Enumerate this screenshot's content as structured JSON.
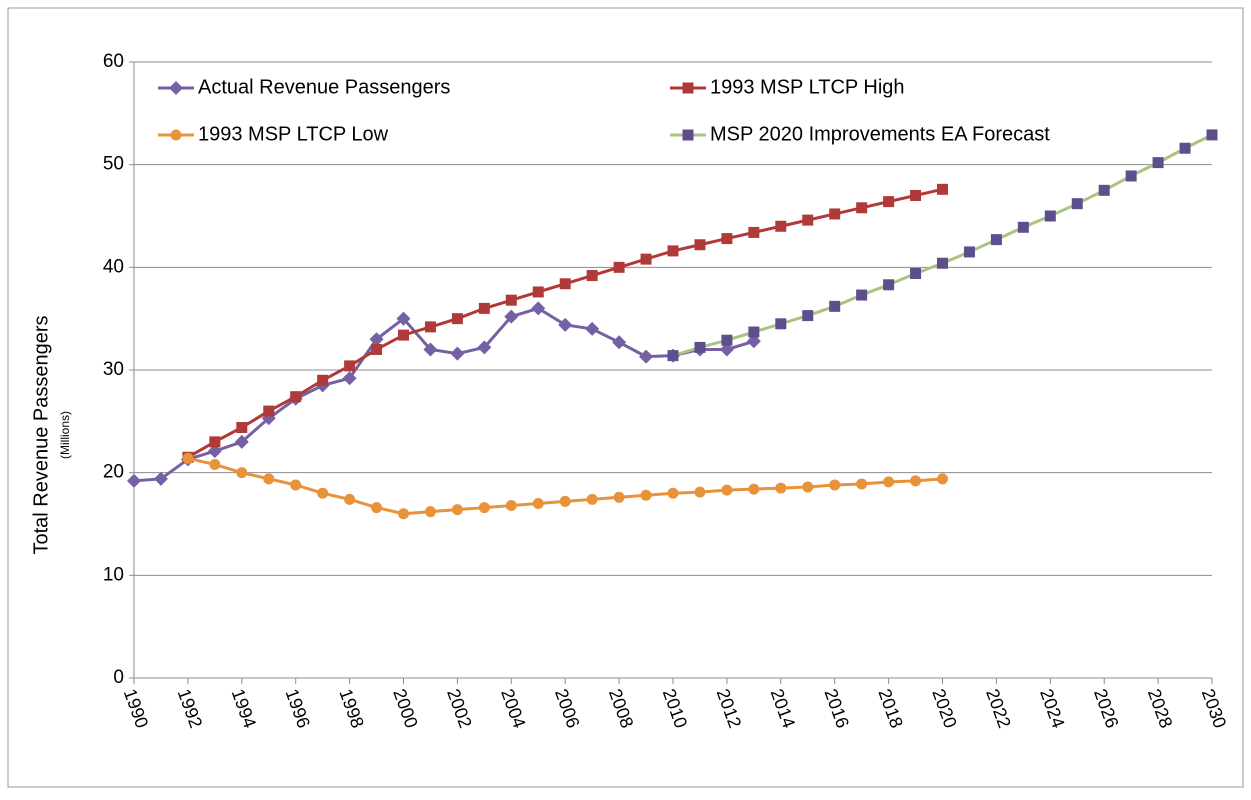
{
  "chart_data": {
    "type": "line",
    "ylabel": "Total Revenue Passengers",
    "ylabel_sub": "(Millions)",
    "xlim": [
      1990,
      2030
    ],
    "xticks": [
      1990,
      1992,
      1994,
      1996,
      1998,
      2000,
      2002,
      2004,
      2006,
      2008,
      2010,
      2012,
      2014,
      2016,
      2018,
      2020,
      2022,
      2024,
      2026,
      2028,
      2030
    ],
    "ylim": [
      0,
      60
    ],
    "yticks": [
      0,
      10,
      20,
      30,
      40,
      50,
      60
    ],
    "grid": true,
    "legend": "top",
    "series": [
      {
        "name": "Actual Revenue Passengers",
        "color": "#7460a3",
        "marker": "diamond",
        "x": [
          1990,
          1991,
          1992,
          1993,
          1994,
          1995,
          1996,
          1997,
          1998,
          1999,
          2000,
          2001,
          2002,
          2003,
          2004,
          2005,
          2006,
          2007,
          2008,
          2009,
          2010,
          2011,
          2012,
          2013
        ],
        "values": [
          19.2,
          19.4,
          21.3,
          22.1,
          23.0,
          25.3,
          27.2,
          28.5,
          29.2,
          33.0,
          35.0,
          32.0,
          31.6,
          32.2,
          35.2,
          36.0,
          34.4,
          34.0,
          32.7,
          31.3,
          31.4,
          32.0,
          32.0,
          32.8
        ]
      },
      {
        "name": "1993 MSP LTCP High",
        "color": "#b03a3a",
        "marker": "square",
        "x": [
          1992,
          1993,
          1994,
          1995,
          1996,
          1997,
          1998,
          1999,
          2000,
          2001,
          2002,
          2003,
          2004,
          2005,
          2006,
          2007,
          2008,
          2009,
          2010,
          2011,
          2012,
          2013,
          2014,
          2015,
          2016,
          2017,
          2018,
          2019,
          2020
        ],
        "values": [
          21.5,
          23.0,
          24.4,
          26.0,
          27.4,
          29.0,
          30.4,
          32.0,
          33.4,
          34.2,
          35.0,
          36.0,
          36.8,
          37.6,
          38.4,
          39.2,
          40.0,
          40.8,
          41.6,
          42.2,
          42.8,
          43.4,
          44.0,
          44.6,
          45.2,
          45.8,
          46.4,
          47.0,
          47.6
        ]
      },
      {
        "name": "1993 MSP LTCP Low",
        "color": "#e8923a",
        "marker": "circle",
        "x": [
          1992,
          1993,
          1994,
          1995,
          1996,
          1997,
          1998,
          1999,
          2000,
          2001,
          2002,
          2003,
          2004,
          2005,
          2006,
          2007,
          2008,
          2009,
          2010,
          2011,
          2012,
          2013,
          2014,
          2015,
          2016,
          2017,
          2018,
          2019,
          2020
        ],
        "values": [
          21.4,
          20.8,
          20.0,
          19.4,
          18.8,
          18.0,
          17.4,
          16.6,
          16.0,
          16.2,
          16.4,
          16.6,
          16.8,
          17.0,
          17.2,
          17.4,
          17.6,
          17.8,
          18.0,
          18.1,
          18.3,
          18.4,
          18.5,
          18.6,
          18.8,
          18.9,
          19.1,
          19.2,
          19.4
        ]
      },
      {
        "name": "MSP 2020 Improvements EA Forecast",
        "color": "#a9c47f",
        "marker_color": "#5e4e8e",
        "marker": "square",
        "x": [
          2010,
          2011,
          2012,
          2013,
          2014,
          2015,
          2016,
          2017,
          2018,
          2019,
          2020,
          2021,
          2022,
          2023,
          2024,
          2025,
          2026,
          2027,
          2028,
          2029,
          2030
        ],
        "values": [
          31.4,
          32.2,
          32.9,
          33.7,
          34.5,
          35.3,
          36.2,
          37.3,
          38.3,
          39.4,
          40.4,
          41.5,
          42.7,
          43.9,
          45.0,
          46.2,
          47.5,
          48.9,
          50.2,
          51.6,
          52.9
        ]
      }
    ]
  }
}
